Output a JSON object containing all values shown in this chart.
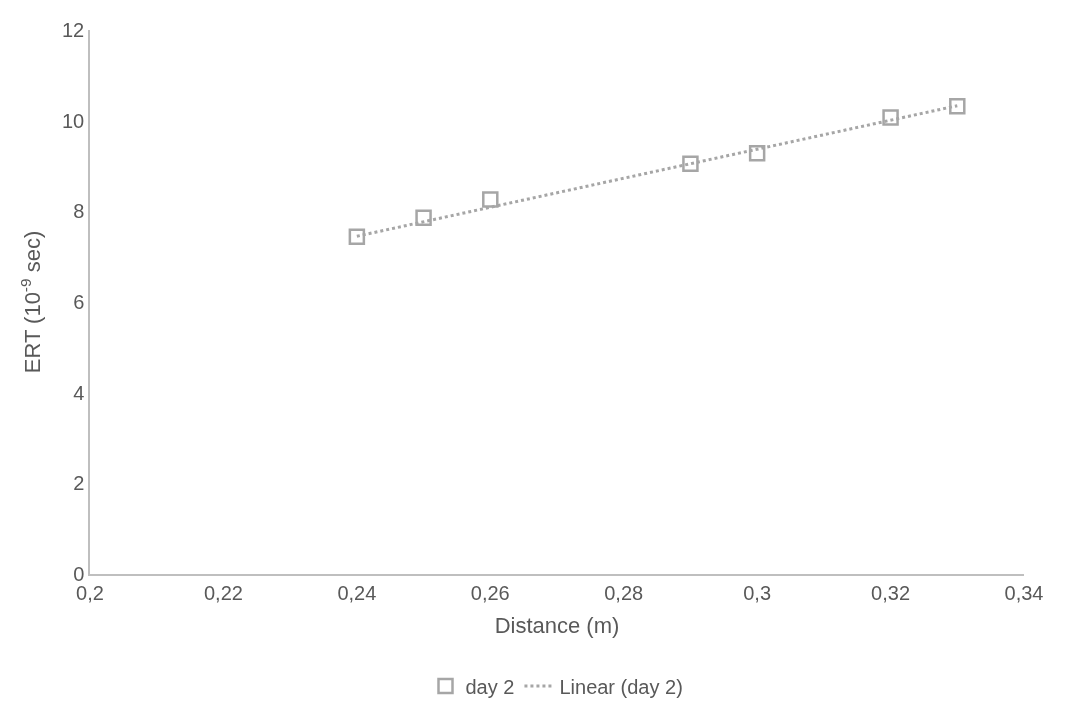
{
  "chart_data": {
    "type": "scatter",
    "xlabel": "Distance (m)",
    "ylabel": "ERT (10$^{-9}$ sec)",
    "xlim": [
      0.2,
      0.34
    ],
    "xticks": [
      {
        "value": 0.2,
        "label": "0,2"
      },
      {
        "value": 0.22,
        "label": "0,22"
      },
      {
        "value": 0.24,
        "label": "0,24"
      },
      {
        "value": 0.26,
        "label": "0,26"
      },
      {
        "value": 0.28,
        "label": "0,28"
      },
      {
        "value": 0.3,
        "label": "0,3"
      },
      {
        "value": 0.32,
        "label": "0,32"
      },
      {
        "value": 0.34,
        "label": "0,34"
      }
    ],
    "ylim": [
      0,
      12
    ],
    "yticks": [
      0,
      2,
      4,
      6,
      8,
      10,
      12
    ],
    "grid": false,
    "legend": "bottom",
    "series": [
      {
        "name": "day 2",
        "marker": "square",
        "color": "#a6a6a6",
        "x": [
          0.24,
          0.25,
          0.26,
          0.29,
          0.3,
          0.32,
          0.33
        ],
        "values": [
          7.44,
          7.86,
          8.26,
          9.05,
          9.28,
          10.07,
          10.32
        ]
      },
      {
        "name": "Linear (day 2)",
        "type": "line",
        "line_style": "dotted",
        "marker": "none",
        "color": "#a6a6a6",
        "x": [
          0.24,
          0.33
        ],
        "values": [
          7.45,
          10.33
        ]
      }
    ]
  }
}
